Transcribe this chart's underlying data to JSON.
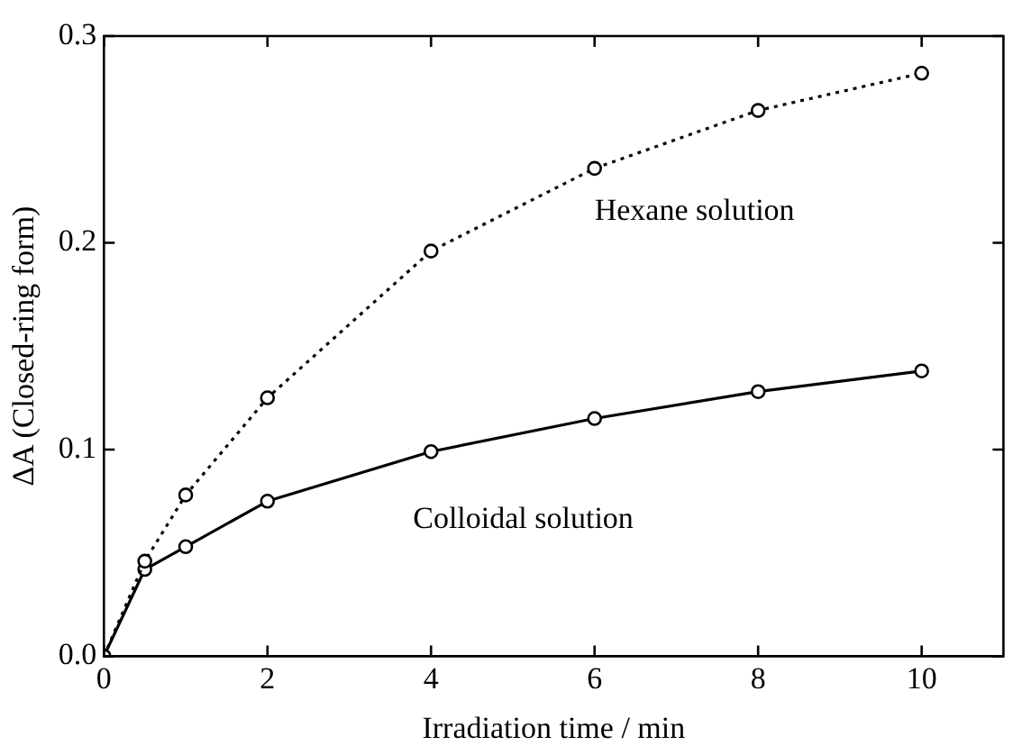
{
  "chart_data": {
    "type": "line",
    "xlabel": "Irradiation time / min",
    "ylabel": "ΔA (Closed-ring form)",
    "xlim": [
      0,
      11
    ],
    "xticks": [
      0,
      2,
      4,
      6,
      8,
      10
    ],
    "ylim": [
      0,
      0.3
    ],
    "yticks": [
      {
        "value": 0,
        "label": "0.0"
      },
      0.1,
      0.2,
      0.3
    ],
    "grid": false,
    "legend": false,
    "marker": "circle",
    "series": [
      {
        "name": "Hexane solution",
        "color": "#000000",
        "line_style": "dotted",
        "x": [
          0,
          0.5,
          1,
          2,
          4,
          6,
          8,
          10
        ],
        "values": [
          0,
          0.046,
          0.078,
          0.125,
          0.196,
          0.236,
          0.264,
          0.282
        ]
      },
      {
        "name": "Colloidal solution",
        "color": "#000000",
        "line_style": "solid",
        "x": [
          0,
          0.5,
          1,
          2,
          4,
          6,
          8,
          10
        ],
        "values": [
          0,
          0.042,
          0.053,
          0.075,
          0.099,
          0.115,
          0.128,
          0.138
        ]
      }
    ]
  }
}
